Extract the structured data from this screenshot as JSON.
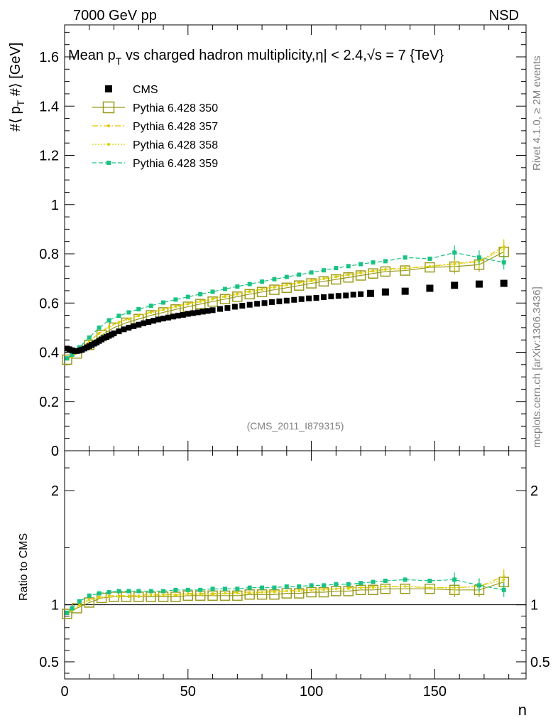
{
  "chart_data": {
    "type": "scatter",
    "header_left": "7000 GeV pp",
    "header_right": "NSD",
    "title": "Mean p",
    "title_sub": "T",
    "title_rest": " vs charged hadron multiplicity,",
    "title_eta": "η| < 2.4,",
    "title_root": "√s = 7 {TeV}",
    "ylabel_main": "#⟨ p",
    "ylabel_main_sub": "T",
    "ylabel_main_rest": " #⟩ [GeV]",
    "ylabel_ratio": "Ratio to CMS",
    "xlabel": "n",
    "analysis_tag": "(CMS_2011_I879315)",
    "side_text_top": "Rivet 4.1.0, ≥ 2M events",
    "side_text_bottom": "mcplots.cern.ch [arXiv:1306.3436]",
    "xlim": [
      0,
      187
    ],
    "ylim": [
      0,
      1.73
    ],
    "ratio_ylim": [
      0.35,
      2.35
    ],
    "x_ticks": [
      "0",
      "50",
      "100",
      "150"
    ],
    "y_ticks": [
      "0",
      "0.2",
      "0.4",
      "0.6",
      "0.8",
      "1",
      "1.2",
      "1.4",
      "1.6"
    ],
    "ratio_ticks": [
      "0.5",
      "1",
      "2"
    ],
    "ref_line": 1,
    "colors": {
      "cms": "#000000",
      "p350": "#9a9a1e",
      "p357": "#e6c200",
      "p358": "#d4d400",
      "p359": "#19c283"
    },
    "legend": [
      {
        "key": "cms",
        "label": "CMS"
      },
      {
        "key": "p350",
        "label": "Pythia 6.428 350"
      },
      {
        "key": "p357",
        "label": "Pythia 6.428 357"
      },
      {
        "key": "p358",
        "label": "Pythia 6.428 358"
      },
      {
        "key": "p359",
        "label": "Pythia 6.428 359"
      }
    ],
    "cms_points": {
      "x": [
        1,
        2,
        3,
        4,
        5,
        6,
        7,
        8,
        9,
        10,
        11,
        12,
        13,
        14,
        15,
        16,
        17,
        18,
        19,
        20,
        22,
        24,
        26,
        28,
        30,
        32,
        34,
        36,
        38,
        40,
        42,
        44,
        46,
        48,
        50,
        52,
        54,
        56,
        58,
        60,
        63,
        66,
        69,
        72,
        75,
        78,
        81,
        84,
        87,
        90,
        93,
        96,
        99,
        102,
        105,
        108,
        111,
        114,
        117,
        120,
        124,
        130,
        138,
        148,
        158,
        168,
        178
      ],
      "y": [
        0.415,
        0.412,
        0.408,
        0.405,
        0.405,
        0.407,
        0.41,
        0.415,
        0.42,
        0.425,
        0.43,
        0.435,
        0.44,
        0.446,
        0.452,
        0.458,
        0.462,
        0.467,
        0.472,
        0.477,
        0.485,
        0.493,
        0.5,
        0.506,
        0.512,
        0.518,
        0.523,
        0.528,
        0.533,
        0.537,
        0.541,
        0.545,
        0.549,
        0.552,
        0.556,
        0.559,
        0.562,
        0.565,
        0.568,
        0.571,
        0.576,
        0.58,
        0.585,
        0.589,
        0.593,
        0.597,
        0.6,
        0.604,
        0.607,
        0.61,
        0.613,
        0.616,
        0.619,
        0.621,
        0.624,
        0.627,
        0.629,
        0.631,
        0.634,
        0.636,
        0.639,
        0.645,
        0.648,
        0.66,
        0.672,
        0.677,
        0.68
      ]
    },
    "series": [
      {
        "key": "p350",
        "name": "Pythia 6.428 350",
        "marker": "open-square",
        "dash": "",
        "x": [
          1,
          5,
          10,
          15,
          20,
          25,
          30,
          35,
          40,
          45,
          50,
          55,
          60,
          65,
          70,
          75,
          80,
          85,
          90,
          95,
          100,
          105,
          110,
          115,
          120,
          125,
          130,
          138,
          148,
          158,
          168,
          178
        ],
        "y": [
          0.37,
          0.395,
          0.43,
          0.47,
          0.5,
          0.52,
          0.535,
          0.55,
          0.562,
          0.574,
          0.585,
          0.596,
          0.606,
          0.616,
          0.626,
          0.636,
          0.645,
          0.654,
          0.662,
          0.671,
          0.68,
          0.688,
          0.696,
          0.704,
          0.712,
          0.72,
          0.728,
          0.732,
          0.745,
          0.748,
          0.756,
          0.808
        ],
        "ratio": [
          0.92,
          0.97,
          1.02,
          1.06,
          1.07,
          1.07,
          1.07,
          1.07,
          1.07,
          1.07,
          1.08,
          1.08,
          1.08,
          1.08,
          1.08,
          1.09,
          1.09,
          1.09,
          1.1,
          1.1,
          1.11,
          1.11,
          1.12,
          1.12,
          1.13,
          1.13,
          1.14,
          1.14,
          1.14,
          1.13,
          1.13,
          1.2
        ]
      },
      {
        "key": "p357",
        "name": "Pythia 6.428 357",
        "marker": "small-dot",
        "dash": "8 3 2 3",
        "x": [
          1,
          3,
          6,
          10,
          14,
          18,
          22,
          26,
          30,
          35,
          40,
          45,
          50,
          55,
          60,
          65,
          70,
          75,
          80,
          85,
          90,
          95,
          100,
          105,
          110,
          115,
          120,
          125,
          130,
          138,
          148,
          158,
          168,
          178
        ],
        "y": [
          0.372,
          0.385,
          0.41,
          0.445,
          0.478,
          0.505,
          0.523,
          0.537,
          0.55,
          0.563,
          0.575,
          0.587,
          0.598,
          0.608,
          0.618,
          0.628,
          0.638,
          0.648,
          0.657,
          0.666,
          0.675,
          0.684,
          0.692,
          0.7,
          0.708,
          0.716,
          0.724,
          0.731,
          0.738,
          0.742,
          0.75,
          0.76,
          0.77,
          0.83
        ],
        "ratio": [
          0.93,
          0.96,
          1.0,
          1.05,
          1.07,
          1.08,
          1.08,
          1.08,
          1.08,
          1.09,
          1.09,
          1.09,
          1.1,
          1.1,
          1.1,
          1.1,
          1.11,
          1.11,
          1.11,
          1.12,
          1.12,
          1.13,
          1.13,
          1.14,
          1.14,
          1.15,
          1.15,
          1.16,
          1.16,
          1.16,
          1.15,
          1.15,
          1.16,
          1.25
        ]
      },
      {
        "key": "p358",
        "name": "Pythia 6.428 358",
        "marker": "small-dot",
        "dash": "2 2",
        "x": [
          1,
          3,
          6,
          10,
          14,
          18,
          22,
          26,
          30,
          35,
          40,
          45,
          50,
          55,
          60,
          65,
          70,
          75,
          80,
          85,
          90,
          95,
          100,
          105,
          110,
          115,
          120,
          125,
          130,
          138,
          148,
          158,
          168,
          178
        ],
        "y": [
          0.371,
          0.383,
          0.408,
          0.443,
          0.476,
          0.502,
          0.52,
          0.534,
          0.547,
          0.56,
          0.572,
          0.584,
          0.595,
          0.605,
          0.615,
          0.625,
          0.635,
          0.645,
          0.654,
          0.663,
          0.672,
          0.681,
          0.689,
          0.697,
          0.705,
          0.713,
          0.721,
          0.728,
          0.735,
          0.74,
          0.748,
          0.758,
          0.768,
          0.82
        ],
        "ratio": [
          0.92,
          0.95,
          0.99,
          1.04,
          1.06,
          1.07,
          1.07,
          1.07,
          1.07,
          1.08,
          1.08,
          1.08,
          1.09,
          1.09,
          1.09,
          1.1,
          1.1,
          1.1,
          1.11,
          1.11,
          1.12,
          1.12,
          1.13,
          1.13,
          1.14,
          1.14,
          1.15,
          1.15,
          1.16,
          1.16,
          1.15,
          1.15,
          1.16,
          1.22
        ]
      },
      {
        "key": "p359",
        "name": "Pythia 6.428 359",
        "marker": "filled-square",
        "dash": "6 3",
        "x": [
          1,
          3,
          6,
          10,
          14,
          18,
          22,
          26,
          30,
          35,
          40,
          45,
          50,
          55,
          60,
          65,
          70,
          75,
          80,
          85,
          90,
          95,
          100,
          105,
          110,
          115,
          120,
          125,
          130,
          138,
          148,
          158,
          168,
          178
        ],
        "y": [
          0.375,
          0.39,
          0.42,
          0.46,
          0.5,
          0.53,
          0.548,
          0.562,
          0.575,
          0.589,
          0.602,
          0.614,
          0.625,
          0.636,
          0.646,
          0.657,
          0.667,
          0.677,
          0.687,
          0.697,
          0.706,
          0.715,
          0.724,
          0.733,
          0.742,
          0.75,
          0.758,
          0.765,
          0.77,
          0.785,
          0.78,
          0.805,
          0.785,
          0.765
        ],
        "ratio": [
          0.93,
          0.97,
          1.03,
          1.08,
          1.1,
          1.11,
          1.12,
          1.12,
          1.12,
          1.12,
          1.12,
          1.13,
          1.13,
          1.13,
          1.14,
          1.14,
          1.14,
          1.15,
          1.15,
          1.15,
          1.16,
          1.16,
          1.17,
          1.17,
          1.18,
          1.18,
          1.19,
          1.2,
          1.21,
          1.22,
          1.21,
          1.22,
          1.17,
          1.13
        ]
      }
    ]
  }
}
